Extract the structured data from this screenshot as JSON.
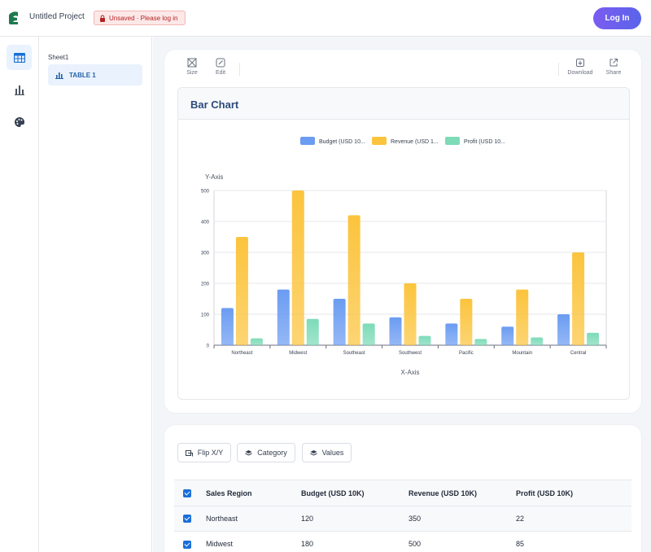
{
  "header": {
    "project_title": "Untitled Project",
    "unsaved_label": "Unsaved · Please log in",
    "login_label": "Log In"
  },
  "rail": {
    "items": [
      {
        "icon": "table-icon",
        "active": true
      },
      {
        "icon": "bar-chart-icon",
        "active": false
      },
      {
        "icon": "palette-icon",
        "active": false
      }
    ]
  },
  "sheets": {
    "sheet_name": "Sheet1",
    "table_label": "TABLE 1"
  },
  "toolbar": {
    "size_label": "Size",
    "edit_label": "Edit",
    "download_label": "Download",
    "share_label": "Share"
  },
  "chart_panel": {
    "title": "Bar Chart"
  },
  "chart_data": {
    "type": "bar",
    "title": "Bar Chart",
    "xlabel": "X-Axis",
    "ylabel": "Y-Axis",
    "ylim": [
      0,
      500
    ],
    "yticks": [
      0,
      100,
      200,
      300,
      400,
      500
    ],
    "legend_position": "top-center",
    "categories": [
      "Northeast",
      "Midwest",
      "Southeast",
      "Southwest",
      "Pacific",
      "Mountain",
      "Central"
    ],
    "series": [
      {
        "name": "Budget (USD 10K)",
        "legend_label": "Budget (USD 10...",
        "color": "#6b9cf2",
        "values": [
          120,
          180,
          150,
          90,
          70,
          60,
          100
        ]
      },
      {
        "name": "Revenue (USD 10K)",
        "legend_label": "Revenue (USD 1...",
        "color": "#fcc43d",
        "values": [
          350,
          500,
          420,
          200,
          150,
          180,
          300
        ]
      },
      {
        "name": "Profit (USD 10K)",
        "legend_label": "Profit (USD 10...",
        "color": "#7ddbb8",
        "values": [
          22,
          85,
          70,
          30,
          20,
          25,
          40
        ]
      }
    ]
  },
  "controls": {
    "flip_label": "Flip X/Y",
    "category_label": "Category",
    "values_label": "Values"
  },
  "table": {
    "headers": [
      "Sales Region",
      "Budget (USD 10K)",
      "Revenue (USD 10K)",
      "Profit (USD 10K)"
    ],
    "rows": [
      [
        "Northeast",
        "120",
        "350",
        "22"
      ],
      [
        "Midwest",
        "180",
        "500",
        "85"
      ]
    ]
  },
  "colors": {
    "accent": "#1a6fd8",
    "login_start": "#7b5cf0",
    "login_end": "#5a64ea"
  }
}
